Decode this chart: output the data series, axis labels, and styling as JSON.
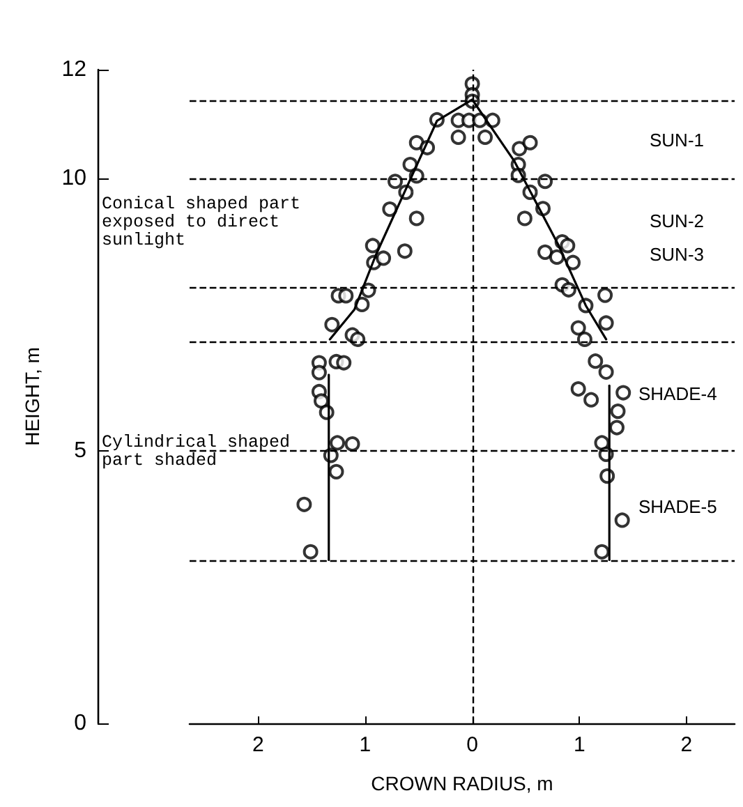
{
  "chart_data": {
    "type": "scatter",
    "xlabel": "CROWN RADIUS, m",
    "ylabel": "HEIGHT, m",
    "xlim": [
      -2.64,
      2.45
    ],
    "ylim": [
      0,
      12
    ],
    "xticks": [
      {
        "value": -2,
        "label": "2"
      },
      {
        "value": -1,
        "label": "1"
      },
      0,
      1,
      {
        "value": 2,
        "label": "2"
      }
    ],
    "yticks": [
      0,
      5,
      10,
      12
    ],
    "marker": "circle",
    "series": [
      {
        "color": "#000000",
        "x": [
          -0.33,
          -0.52,
          -0.42,
          -0.58,
          -0.52,
          -0.72,
          -0.62,
          -0.77,
          -0.52,
          -0.93,
          -0.63,
          -0.92,
          -0.83,
          -0.97,
          -1.25,
          -1.18,
          -1.03,
          -1.31,
          -1.12,
          -1.07,
          -1.43,
          -1.27,
          -1.2,
          -1.43,
          -1.43,
          -1.41,
          -1.36,
          -1.26,
          -1.12,
          -1.32,
          -1.27,
          -1.57,
          -1.51,
          0,
          0,
          0,
          -0.13,
          -0.03,
          0.07,
          0.19,
          -0.13,
          0.12,
          0.44,
          0.54,
          0.43,
          0.43,
          0.68,
          0.54,
          0.66,
          0.49,
          0.84,
          0.89,
          0.68,
          0.79,
          0.94,
          0.84,
          0.9,
          1.24,
          1.06,
          0.99,
          1.25,
          1.05,
          1.15,
          1.25,
          0.99,
          1.11,
          1.41,
          1.36,
          1.35,
          1.21,
          1.25,
          1.26,
          1.4,
          1.21
        ],
        "values": [
          11.08,
          10.66,
          10.57,
          10.26,
          10.05,
          9.95,
          9.75,
          9.44,
          9.27,
          8.77,
          8.67,
          8.46,
          8.54,
          7.95,
          7.85,
          7.85,
          7.69,
          7.32,
          7.13,
          7.05,
          6.62,
          6.64,
          6.62,
          6.44,
          6.09,
          5.92,
          5.71,
          5.15,
          5.13,
          4.92,
          4.62,
          4.02,
          3.15,
          11.74,
          11.54,
          11.42,
          11.07,
          11.07,
          11.07,
          11.07,
          10.76,
          10.76,
          10.55,
          10.66,
          10.26,
          10.06,
          9.95,
          9.75,
          9.45,
          9.27,
          8.84,
          8.77,
          8.65,
          8.56,
          8.46,
          8.05,
          7.96,
          7.86,
          7.67,
          7.26,
          7.35,
          7.05,
          6.65,
          6.45,
          6.14,
          5.94,
          6.07,
          5.73,
          5.43,
          5.15,
          4.94,
          4.54,
          3.73,
          3.15
        ]
      },
      {
        "type": "line",
        "color": "#000000",
        "marker": "none",
        "line_style": "solid",
        "x": [
          -1.34,
          -1.34
        ],
        "values": [
          3,
          6.4
        ]
      },
      {
        "type": "line",
        "color": "#000000",
        "marker": "none",
        "line_style": "solid",
        "x": [
          -1.33,
          -1.1,
          -0.9,
          -0.33,
          0,
          0.39,
          0.8,
          1.06,
          1.25
        ],
        "values": [
          7.05,
          7.6,
          8.6,
          11.06,
          11.45,
          10.33,
          8.8,
          7.67,
          7.05
        ]
      },
      {
        "type": "line",
        "color": "#000000",
        "marker": "none",
        "line_style": "solid",
        "x": [
          1.28,
          1.28
        ],
        "values": [
          3,
          6.2
        ]
      }
    ],
    "ref_lines": [
      {
        "axis": "y",
        "value": 11.43,
        "line_style": "dashed"
      },
      {
        "axis": "y",
        "value": 10,
        "line_style": "dashed"
      },
      {
        "axis": "y",
        "value": 8,
        "line_style": "dashed"
      },
      {
        "axis": "y",
        "value": 7,
        "line_style": "dashed"
      },
      {
        "axis": "y",
        "value": 5,
        "line_style": "dashed"
      },
      {
        "axis": "y",
        "value": 3,
        "line_style": "dashed"
      },
      {
        "axis": "x",
        "value": 0,
        "line_style": "dashed"
      }
    ],
    "annotations": [
      "Conical shaped part\nexposed to direct\nsunlight",
      "Cylindrical shaped\npart shaded",
      "SUN-1",
      "SUN-2",
      "SUN-3",
      "SHADE-4",
      "SHADE-5"
    ]
  }
}
